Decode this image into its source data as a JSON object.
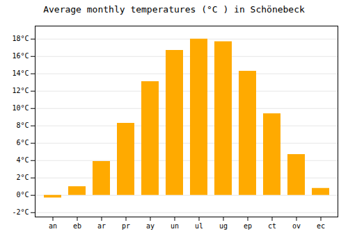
{
  "chart_data": {
    "type": "bar",
    "title": "Average monthly temperatures (°C ) in Schönebeck",
    "categories": [
      "an",
      "eb",
      "ar",
      "pr",
      "ay",
      "un",
      "ul",
      "ug",
      "ep",
      "ct",
      "ov",
      "ec"
    ],
    "values": [
      -0.3,
      1.0,
      3.9,
      8.3,
      13.1,
      16.7,
      18.0,
      17.7,
      14.3,
      9.4,
      4.7,
      0.8
    ],
    "color": "#FFAA00",
    "ylim": [
      -2.5,
      19.5
    ],
    "yticks": [
      {
        "value": -2,
        "label": "-2°C"
      },
      {
        "value": 0,
        "label": "0°C"
      },
      {
        "value": 2,
        "label": "2°C"
      },
      {
        "value": 4,
        "label": "4°C"
      },
      {
        "value": 6,
        "label": "6°C"
      },
      {
        "value": 8,
        "label": "8°C"
      },
      {
        "value": 10,
        "label": "10°C"
      },
      {
        "value": 12,
        "label": "12°C"
      },
      {
        "value": 14,
        "label": "14°C"
      },
      {
        "value": 16,
        "label": "16°C"
      },
      {
        "value": 18,
        "label": "18°C"
      }
    ],
    "grid": true
  }
}
